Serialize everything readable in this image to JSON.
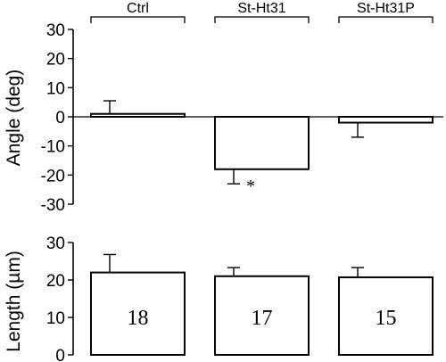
{
  "chart_data": [
    {
      "type": "bar",
      "categories": [
        "Ctrl",
        "St-Ht31",
        "St-Ht31P"
      ],
      "ylabel": "Angle (deg)",
      "ylim": [
        -30,
        30
      ],
      "yticks": [
        "30",
        "20",
        "10",
        "0",
        "-10",
        "-20",
        "-30"
      ],
      "values": [
        1,
        -18,
        -2
      ],
      "errors": [
        4.5,
        5,
        5
      ],
      "annotations": [
        "",
        "*",
        ""
      ]
    },
    {
      "type": "bar",
      "categories": [
        "Ctrl",
        "St-Ht31",
        "St-Ht31P"
      ],
      "ylabel": "Length (µm)",
      "ylim": [
        0,
        30
      ],
      "yticks": [
        "30",
        "20",
        "10",
        "0"
      ],
      "values": [
        22,
        21,
        20.7
      ],
      "errors": [
        4.8,
        2.3,
        2.6
      ],
      "n_labels": [
        "18",
        "17",
        "15"
      ]
    }
  ]
}
